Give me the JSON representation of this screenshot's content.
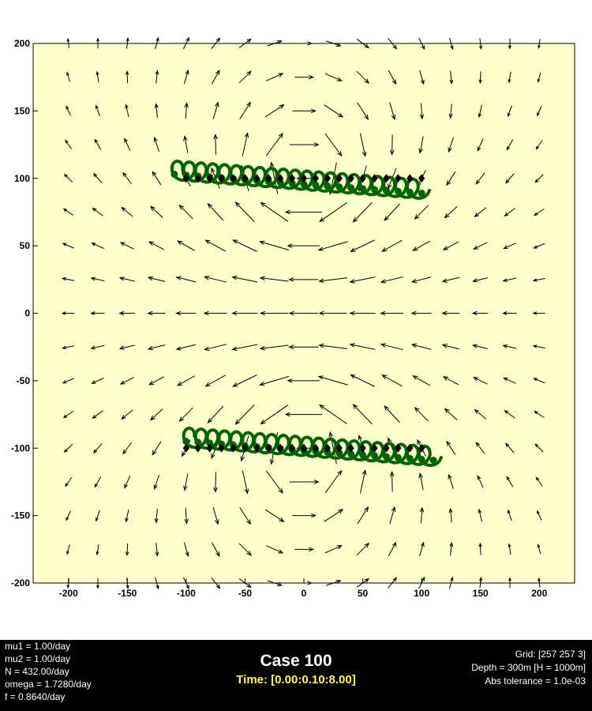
{
  "chart_data": {
    "type": "scatter",
    "subtype": "vector-field-with-trajectories",
    "title": "",
    "xlabel": "",
    "ylabel": "",
    "xlim": [
      -230,
      230
    ],
    "ylim": [
      -200,
      200
    ],
    "xticks": [
      -200,
      -150,
      -100,
      -50,
      0,
      50,
      100,
      150,
      200
    ],
    "yticks": [
      -200,
      -150,
      -100,
      -50,
      0,
      50,
      100,
      150,
      200
    ],
    "grid": false,
    "background_color": "#ffffcc",
    "arrow_color": "#000000",
    "vector_field": {
      "grid_spacing": 25,
      "x_range": [
        -200,
        200
      ],
      "y_range": [
        -200,
        200
      ],
      "description": "velocity field from two point vortices at (0,100) and (0,-100)"
    },
    "series": [
      {
        "marker": "diamond",
        "color": "#000000",
        "x": [
          -100,
          -90,
          -80,
          -70,
          -60,
          -50,
          -40,
          -30,
          -20,
          -10,
          0,
          10,
          20,
          30,
          40,
          50,
          60,
          70,
          80,
          90,
          100
        ],
        "y": [
          100,
          100,
          100,
          100,
          100,
          100,
          100,
          100,
          100,
          100,
          100,
          100,
          100,
          100,
          100,
          100,
          100,
          100,
          100,
          100,
          100
        ]
      },
      {
        "marker": "diamond",
        "color": "#000000",
        "x": [
          -100,
          -90,
          -80,
          -70,
          -60,
          -50,
          -40,
          -30,
          -20,
          -10,
          0,
          10,
          20,
          30,
          40,
          50,
          60,
          70,
          80,
          90,
          100
        ],
        "y": [
          -100,
          -100,
          -100,
          -100,
          -100,
          -100,
          -100,
          -100,
          -100,
          -100,
          -100,
          -100,
          -100,
          -100,
          -100,
          -100,
          -100,
          -100,
          -100,
          -100,
          -100
        ]
      },
      {
        "marker": "line-dots",
        "color": "#006400",
        "x_start": -110,
        "x_end": 100,
        "y_start": 106,
        "y_end": 92,
        "loop_radius": 7
      },
      {
        "marker": "line-dots",
        "color": "#006400",
        "x_start": -100,
        "x_end": 110,
        "y_start": -92,
        "y_end": -106,
        "loop_radius": 7
      }
    ]
  },
  "footer": {
    "left_params": [
      "mu1 = 1.00/day",
      "mu2 = 1.00/day",
      "N = 432.00/day",
      "omega = 1.7280/day",
      "f = 0.8640/day"
    ],
    "case_title": "Case 100",
    "time_range": "Time: [0.00:0.10:8.00]",
    "right_params": [
      "Grid: [257 257 3]",
      "Depth = 300m  [H = 1000m]",
      "Abs tolerance = 1.0e-03"
    ],
    "time_color": "#ffff33"
  }
}
